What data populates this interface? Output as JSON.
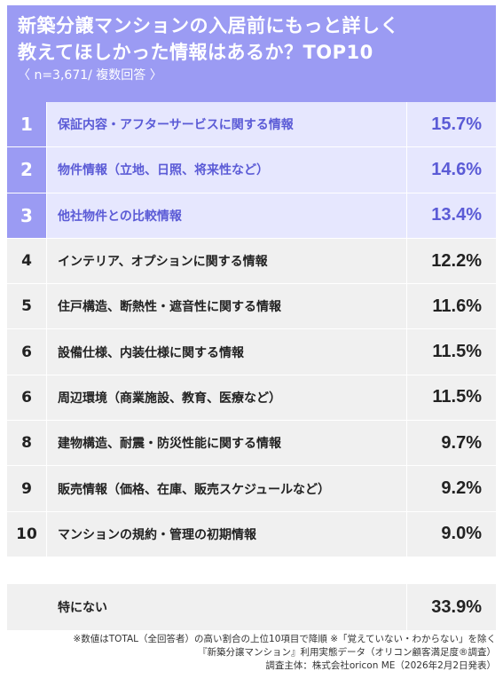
{
  "header": {
    "title_line1": "新築分譲マンションの入居前にもっと詳しく",
    "title_line2": "教えてほしかった情報はあるか？TOP10",
    "subtitle": "〈 n=3,671/ 複数回答 〉"
  },
  "chart_data": {
    "type": "table",
    "title": "新築分譲マンションの入居前にもっと詳しく教えてほしかった情報はあるか？TOP10",
    "subtitle": "〈 n=3,671/ 複数回答 〉",
    "rows": [
      {
        "rank": "1",
        "label": "保証内容・アフターサービスに関する情報",
        "value": "15.7%",
        "value_num": 15.7,
        "highlight": true
      },
      {
        "rank": "2",
        "label": "物件情報（立地、日照、将来性など）",
        "value": "14.6%",
        "value_num": 14.6,
        "highlight": true
      },
      {
        "rank": "3",
        "label": "他社物件との比較情報",
        "value": "13.4%",
        "value_num": 13.4,
        "highlight": true
      },
      {
        "rank": "4",
        "label": "インテリア、オプションに関する情報",
        "value": "12.2%",
        "value_num": 12.2,
        "highlight": false
      },
      {
        "rank": "5",
        "label": "住戸構造、断熱性・遮音性に関する情報",
        "value": "11.6%",
        "value_num": 11.6,
        "highlight": false
      },
      {
        "rank": "6",
        "label": "設備仕様、内装仕様に関する情報",
        "value": "11.5%",
        "value_num": 11.5,
        "highlight": false
      },
      {
        "rank": "6",
        "label": "周辺環境（商業施設、教育、医療など）",
        "value": "11.5%",
        "value_num": 11.5,
        "highlight": false
      },
      {
        "rank": "8",
        "label": "建物構造、耐震・防災性能に関する情報",
        "value": "9.7%",
        "value_num": 9.7,
        "highlight": false
      },
      {
        "rank": "9",
        "label": "販売情報（価格、在庫、販売スケジュールなど）",
        "value": "9.2%",
        "value_num": 9.2,
        "highlight": false
      },
      {
        "rank": "10",
        "label": "マンションの規約・管理の初期情報",
        "value": "9.0%",
        "value_num": 9.0,
        "highlight": false
      }
    ],
    "none_row": {
      "label": "特にない",
      "value": "33.9%",
      "value_num": 33.9
    }
  },
  "footer": {
    "note1": "※数値はTOTAL（全回答者）の高い割合の上位10項目で降順 ※「覚えていない・わからない」を除く",
    "note2": "『新築分譲マンション』利用実態データ（オリコン顧客満足度®調査）",
    "note3": "調査主体：株式会社oricon ME（2026年2月2日発表）"
  },
  "colors": {
    "accent": "#9b9bf3",
    "accent_text": "#5b5bd6",
    "top_row_bg": "#e6e7fe",
    "row_bg": "#f0f0f0"
  }
}
